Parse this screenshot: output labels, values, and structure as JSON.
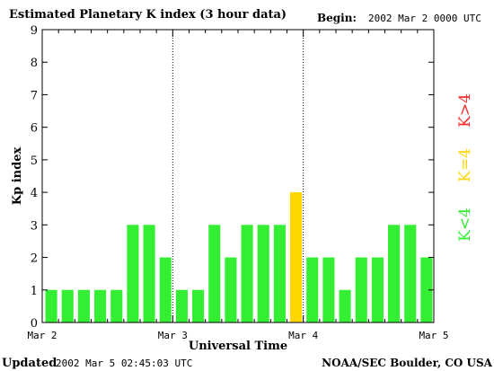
{
  "header": {
    "title": "Estimated Planetary K index (3 hour data)",
    "begin_label": "Begin:",
    "begin_value": "2002 Mar 2 0000 UTC"
  },
  "footer": {
    "updated_label": "Updated",
    "updated_value": "2002 Mar  5 02:45:03 UTC",
    "source": "NOAA/SEC Boulder, CO USA"
  },
  "legend": [
    {
      "label": "K>4",
      "color": "#ff2a2a"
    },
    {
      "label": "K=4",
      "color": "#ffd700"
    },
    {
      "label": "K<4",
      "color": "#33ee33"
    }
  ],
  "chart_data": {
    "type": "bar",
    "title": "Estimated Planetary K index (3 hour data)",
    "xlabel": "Universal Time",
    "ylabel": "Kp index",
    "ylim": [
      0,
      9
    ],
    "yticks": [
      0,
      1,
      2,
      3,
      4,
      5,
      6,
      7,
      8,
      9
    ],
    "day_labels": [
      "Mar 2",
      "Mar 3",
      "Mar 4",
      "Mar 5"
    ],
    "grid": "dotted vertical lines at day boundaries",
    "colors": {
      "below": "#33ee33",
      "equal": "#ffd700",
      "above": "#ff2a2a"
    },
    "values": [
      1,
      1,
      1,
      1,
      1,
      3,
      3,
      2,
      1,
      1,
      3,
      2,
      3,
      3,
      3,
      4,
      2,
      2,
      1,
      2,
      2,
      3,
      3,
      2
    ]
  }
}
